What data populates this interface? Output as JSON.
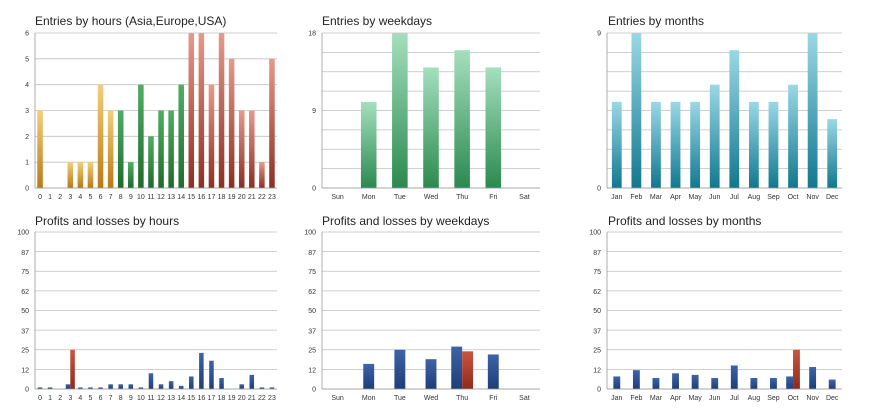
{
  "colors": {
    "asia": "#d9a23b",
    "europe": "#3b8c45",
    "usa": "#c0665a",
    "weekday_green": "#4fae73",
    "month_teal": "#2f9fb5",
    "profit_blue": "#2c4f8f",
    "loss_red": "#b33a2e",
    "grid": "#bfbfbf"
  },
  "chart_data": [
    {
      "type": "bar",
      "title": "Entries by hours (Asia,Europe,USA)",
      "categories": [
        "0",
        "1",
        "2",
        "3",
        "4",
        "5",
        "6",
        "7",
        "8",
        "9",
        "10",
        "11",
        "12",
        "13",
        "14",
        "15",
        "16",
        "17",
        "18",
        "19",
        "20",
        "21",
        "22",
        "23"
      ],
      "values": [
        3,
        0,
        0,
        1,
        1,
        1,
        4,
        3,
        3,
        1,
        4,
        2,
        3,
        3,
        4,
        6,
        6,
        4,
        6,
        5,
        3,
        3,
        1,
        5
      ],
      "segments": [
        "asia",
        "asia",
        "asia",
        "asia",
        "asia",
        "asia",
        "asia",
        "asia",
        "europe",
        "europe",
        "europe",
        "europe",
        "europe",
        "europe",
        "europe",
        "usa",
        "usa",
        "usa",
        "usa",
        "usa",
        "usa",
        "usa",
        "usa",
        "usa"
      ],
      "yticks": [
        "0",
        "1",
        "2",
        "3",
        "4",
        "5",
        "6"
      ],
      "ylim": [
        0,
        6
      ],
      "grid": true
    },
    {
      "type": "bar",
      "title": "Entries by weekdays",
      "categories": [
        "Sun",
        "Mon",
        "Tue",
        "Wed",
        "Thu",
        "Fri",
        "Sat"
      ],
      "values": [
        0,
        10,
        18,
        14,
        16,
        14,
        0
      ],
      "yticks": [
        "0",
        "9",
        "18"
      ],
      "ylim": [
        0,
        18
      ],
      "grid": true
    },
    {
      "type": "bar",
      "title": "Entries by months",
      "categories": [
        "Jan",
        "Feb",
        "Mar",
        "Apr",
        "May",
        "Jun",
        "Jul",
        "Aug",
        "Sep",
        "Oct",
        "Nov",
        "Dec"
      ],
      "values": [
        5,
        9,
        5,
        5,
        5,
        6,
        8,
        5,
        5,
        6,
        9,
        4
      ],
      "yticks": [
        "0",
        "9"
      ],
      "ylim": [
        0,
        9
      ],
      "grid": true
    },
    {
      "type": "bar",
      "title": "Profits and losses by hours",
      "categories": [
        "0",
        "1",
        "2",
        "3",
        "4",
        "5",
        "6",
        "7",
        "8",
        "9",
        "10",
        "11",
        "12",
        "13",
        "14",
        "15",
        "16",
        "17",
        "18",
        "19",
        "20",
        "21",
        "22",
        "23"
      ],
      "series": [
        {
          "values": [
            1,
            1,
            0,
            3,
            1,
            1,
            1,
            3,
            3,
            3,
            1,
            10,
            3,
            5,
            2,
            8,
            23,
            18,
            7,
            0,
            3,
            9,
            1,
            1
          ]
        },
        {
          "values": [
            0,
            0,
            0,
            25,
            0,
            0,
            0,
            0,
            0,
            0,
            0,
            0,
            0,
            0,
            0,
            0,
            0,
            0,
            0,
            0,
            0,
            0,
            0,
            0
          ]
        }
      ],
      "yticks": [
        "0",
        "12",
        "25",
        "37",
        "50",
        "62",
        "75",
        "87",
        "100"
      ],
      "ylim": [
        0,
        100
      ],
      "grid": true
    },
    {
      "type": "bar",
      "title": "Profits and losses by weekdays",
      "categories": [
        "Sun",
        "Mon",
        "Tue",
        "Wed",
        "Thu",
        "Fri",
        "Sat"
      ],
      "series": [
        {
          "values": [
            0,
            16,
            25,
            19,
            27,
            22,
            0
          ]
        },
        {
          "values": [
            0,
            0,
            0,
            0,
            24,
            0,
            0
          ]
        }
      ],
      "yticks": [
        "0",
        "12",
        "25",
        "37",
        "50",
        "62",
        "75",
        "87",
        "100"
      ],
      "ylim": [
        0,
        100
      ],
      "grid": true
    },
    {
      "type": "bar",
      "title": "Profits and losses by months",
      "categories": [
        "Jan",
        "Feb",
        "Mar",
        "Apr",
        "May",
        "Jun",
        "Jul",
        "Aug",
        "Sep",
        "Oct",
        "Nov",
        "Dec"
      ],
      "series": [
        {
          "values": [
            8,
            12,
            7,
            10,
            9,
            7,
            15,
            7,
            7,
            8,
            14,
            6
          ]
        },
        {
          "values": [
            0,
            0,
            0,
            0,
            0,
            0,
            0,
            0,
            0,
            25,
            0,
            0
          ]
        }
      ],
      "yticks": [
        "0",
        "12",
        "25",
        "37",
        "50",
        "62",
        "75",
        "87",
        "100"
      ],
      "ylim": [
        0,
        100
      ],
      "grid": true
    }
  ]
}
